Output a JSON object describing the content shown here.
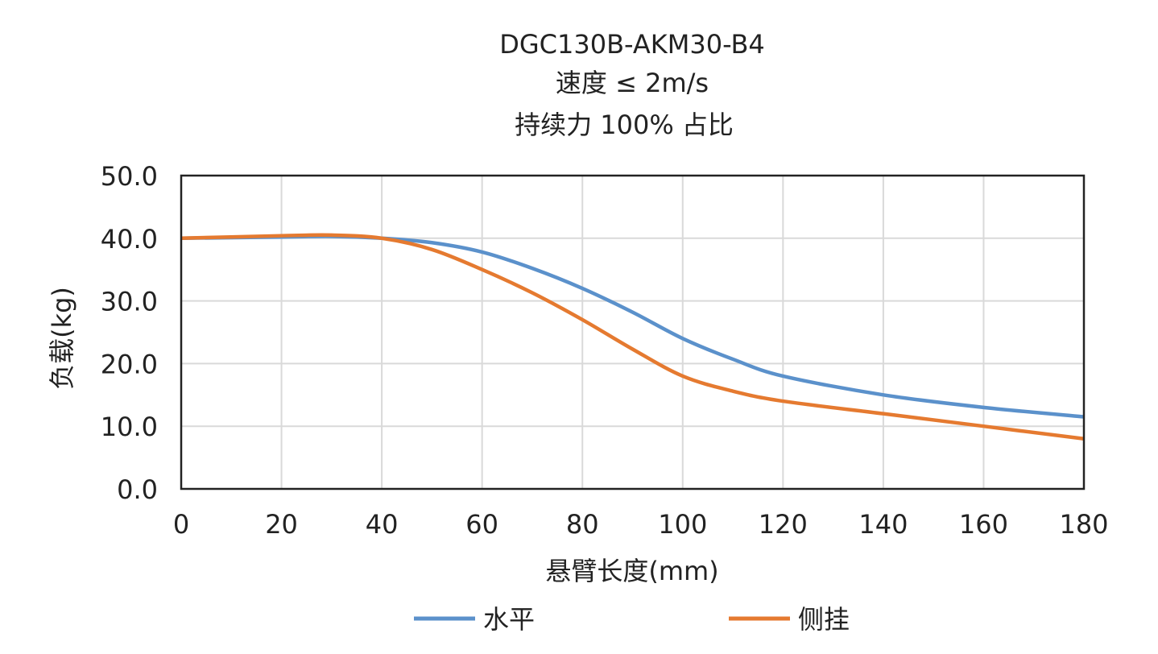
{
  "chart_data": {
    "type": "line",
    "title": [
      "DGC130B-AKM30-B4",
      "速度 ≤ 2m/s",
      "持续力 100% 占比"
    ],
    "xlabel": "悬臂长度(mm)",
    "ylabel": "负载(kg)",
    "xlim": [
      0,
      180
    ],
    "ylim": [
      0,
      50
    ],
    "xticks": [
      0,
      20,
      40,
      60,
      80,
      100,
      120,
      140,
      160,
      180
    ],
    "yticks": [
      "0.0",
      "10.0",
      "20.0",
      "30.0",
      "40.0",
      "50.0"
    ],
    "grid": true,
    "legend": "bottom",
    "x": [
      0,
      20,
      30,
      40,
      50,
      60,
      70,
      80,
      90,
      100,
      110,
      120,
      140,
      160,
      180
    ],
    "series": [
      {
        "name": "水平",
        "color": "#5B91CB",
        "values": [
          40,
          40.2,
          40.3,
          40,
          39.3,
          37.8,
          35.2,
          32,
          28.2,
          24,
          20.7,
          18,
          15,
          13,
          11.5
        ]
      },
      {
        "name": "侧挂",
        "color": "#E57A30",
        "values": [
          40,
          40.4,
          40.5,
          40,
          38.2,
          35,
          31.3,
          27,
          22.3,
          18,
          15.6,
          14,
          12,
          10,
          8
        ]
      }
    ]
  }
}
